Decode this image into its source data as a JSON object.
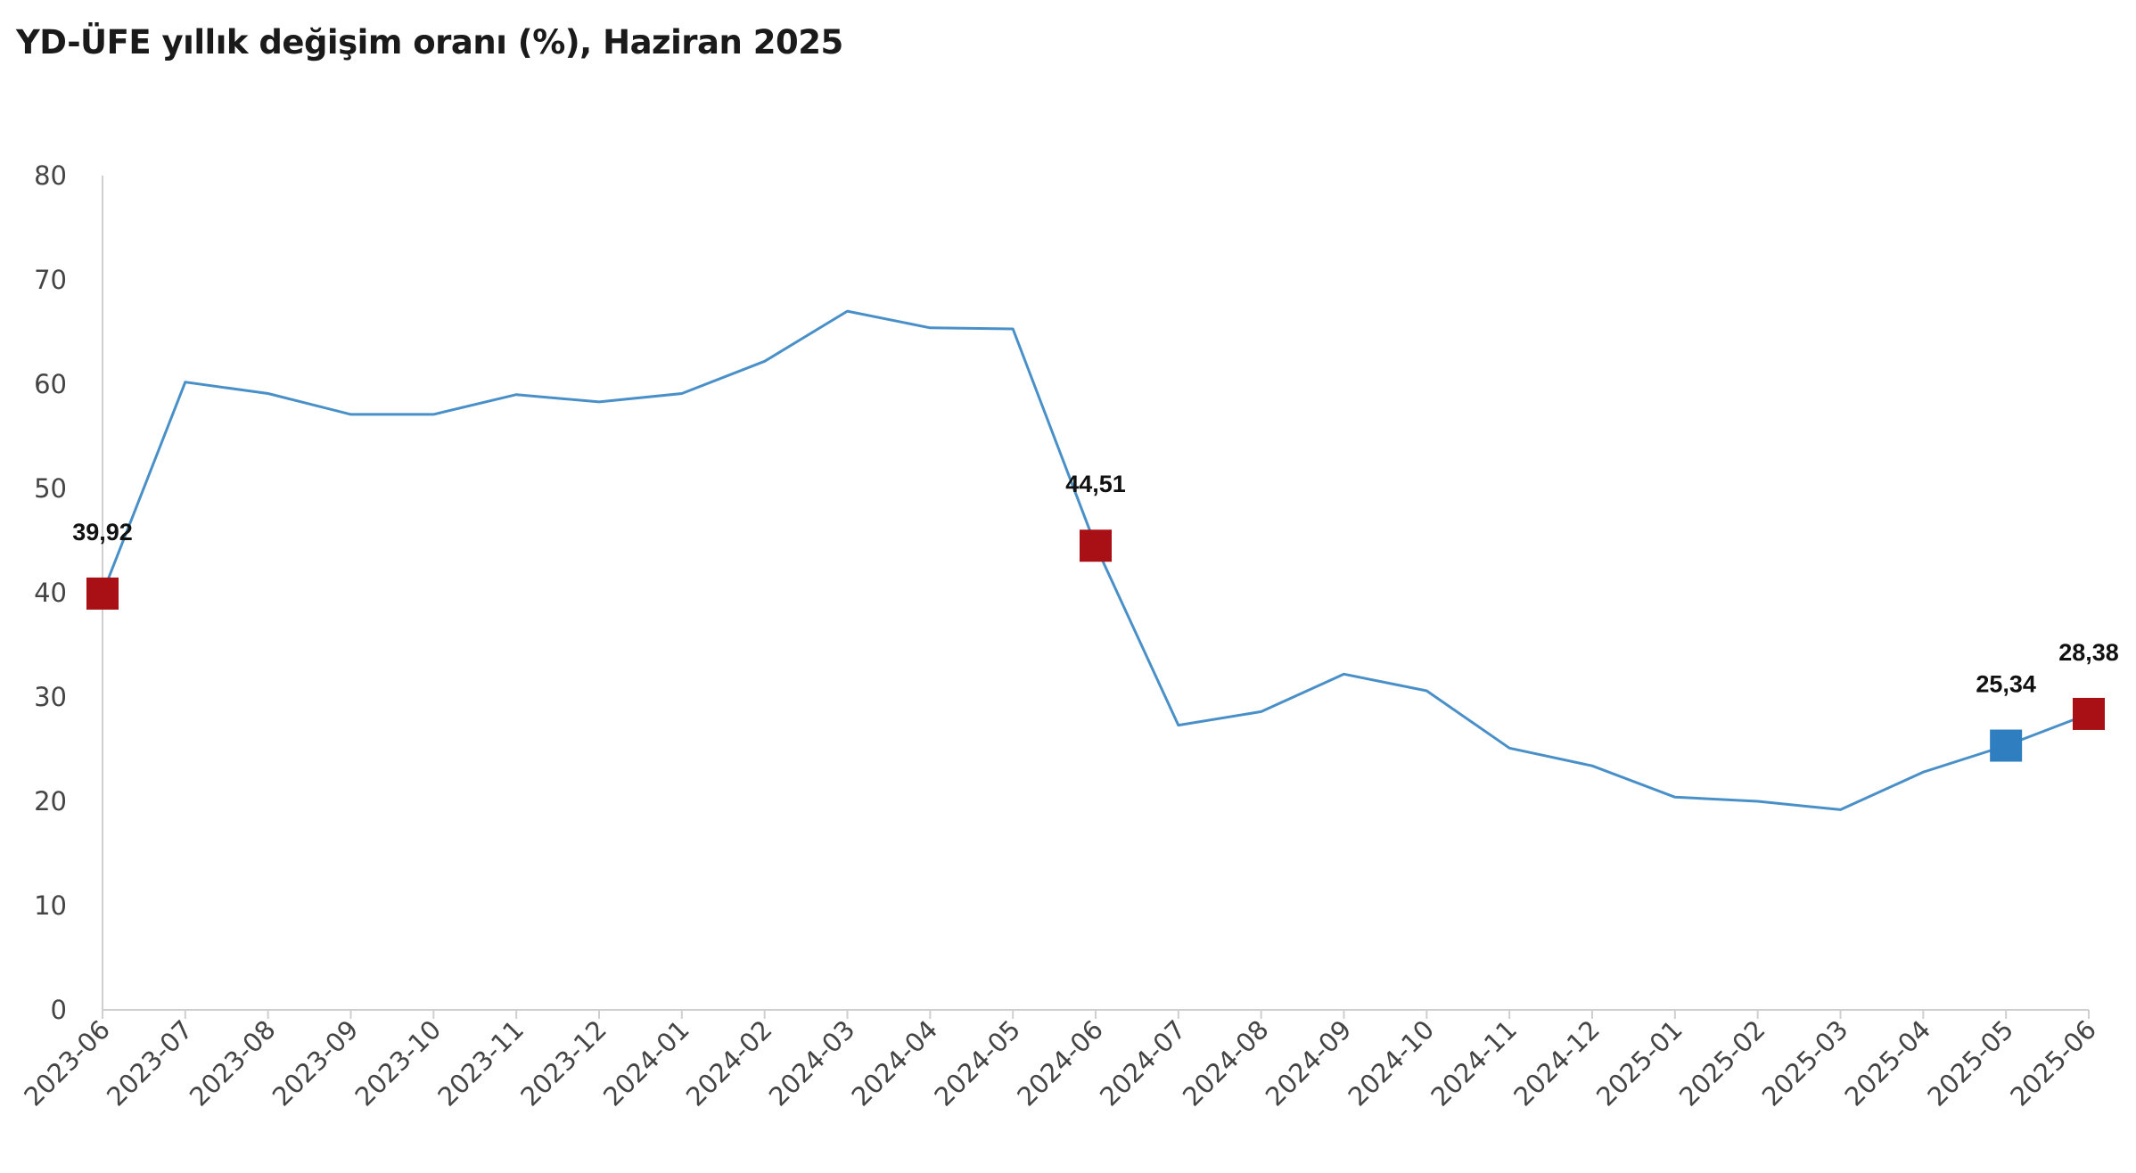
{
  "title": "YD-ÜFE yıllık değişim oranı (%), Haziran 2025",
  "colors": {
    "line": "#4a90c8",
    "marker_red": "#a81016",
    "marker_blue": "#2f7fc0",
    "axis": "#cfcfcf"
  },
  "chart_data": {
    "type": "line",
    "title": "YD-ÜFE yıllık değişim oranı (%), Haziran 2025",
    "xlabel": "",
    "ylabel": "",
    "ylim": [
      0,
      80
    ],
    "yticks": [
      0,
      10,
      20,
      30,
      40,
      50,
      60,
      70,
      80
    ],
    "grid": false,
    "categories": [
      "2023-06",
      "2023-07",
      "2023-08",
      "2023-09",
      "2023-10",
      "2023-11",
      "2023-12",
      "2024-01",
      "2024-02",
      "2024-03",
      "2024-04",
      "2024-05",
      "2024-06",
      "2024-07",
      "2024-08",
      "2024-09",
      "2024-10",
      "2024-11",
      "2024-12",
      "2025-01",
      "2025-02",
      "2025-03",
      "2025-04",
      "2025-05",
      "2025-06"
    ],
    "series": [
      {
        "values": [
          39.92,
          60.2,
          59.1,
          57.1,
          57.1,
          59.0,
          58.3,
          59.1,
          62.2,
          67.0,
          65.4,
          65.3,
          44.51,
          27.3,
          28.6,
          32.2,
          30.6,
          25.1,
          23.4,
          20.4,
          20.0,
          19.2,
          22.8,
          25.34,
          28.38
        ]
      }
    ],
    "highlighted_points": [
      {
        "index": 0,
        "label": "39,92",
        "color": "red"
      },
      {
        "index": 12,
        "label": "44,51",
        "color": "red"
      },
      {
        "index": 23,
        "label": "25,34",
        "color": "blue"
      },
      {
        "index": 24,
        "label": "28,38",
        "color": "red"
      }
    ]
  }
}
